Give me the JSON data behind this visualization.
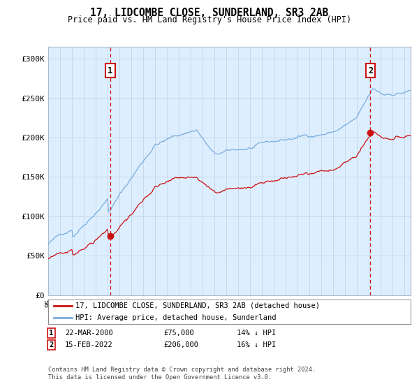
{
  "title": "17, LIDCOMBE CLOSE, SUNDERLAND, SR3 2AB",
  "subtitle": "Price paid vs. HM Land Registry's House Price Index (HPI)",
  "hpi_color": "#7aaddb",
  "property_color": "#cc1111",
  "plot_bg": "#ddeeff",
  "ylabel_ticks": [
    "£0",
    "£50K",
    "£100K",
    "£150K",
    "£200K",
    "£250K",
    "£300K"
  ],
  "ytick_values": [
    0,
    50000,
    100000,
    150000,
    200000,
    250000,
    300000
  ],
  "ylim": [
    0,
    315000
  ],
  "xlim_start": 1995.0,
  "xlim_end": 2025.5,
  "transaction1": {
    "date": "22-MAR-2000",
    "price": 75000,
    "hpi_pct": "14% ↓ HPI",
    "x": 2000.22
  },
  "transaction2": {
    "date": "15-FEB-2022",
    "price": 206000,
    "hpi_pct": "16% ↓ HPI",
    "x": 2022.12
  },
  "legend_property": "17, LIDCOMBE CLOSE, SUNDERLAND, SR3 2AB (detached house)",
  "legend_hpi": "HPI: Average price, detached house, Sunderland",
  "footnote": "Contains HM Land Registry data © Crown copyright and database right 2024.\nThis data is licensed under the Open Government Licence v3.0."
}
